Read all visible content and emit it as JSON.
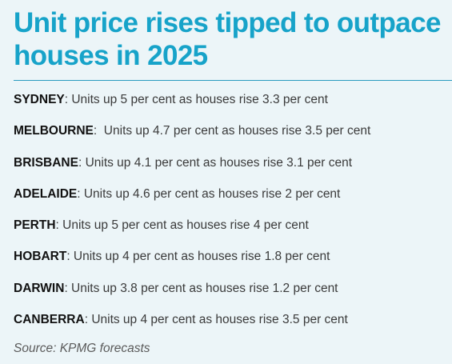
{
  "title": "Unit price rises tipped to outpace houses in 2025",
  "rows": [
    {
      "city": "SYDNEY",
      "text": ": Units up 5 per cent as houses rise 3.3 per cent"
    },
    {
      "city": "MELBOURNE",
      "text": ":  Units up 4.7 per cent as houses rise 3.5 per cent"
    },
    {
      "city": "BRISBANE",
      "text": ": Units up 4.1 per cent as houses rise 3.1 per cent"
    },
    {
      "city": "ADELAIDE",
      "text": ": Units up 4.6 per cent as houses rise 2 per cent"
    },
    {
      "city": "PERTH",
      "text": ": Units up 5 per cent as houses rise 4 per cent"
    },
    {
      "city": "HOBART",
      "text": ": Units up 4 per cent as houses rise 1.8 per cent"
    },
    {
      "city": "DARWIN",
      "text": ": Units up 3.8 per cent as houses rise 1.2 per cent"
    },
    {
      "city": "CANBERRA",
      "text": ": Units up 4 per cent as houses rise 3.5 per cent"
    }
  ],
  "source": "Source: KPMG forecasts",
  "colors": {
    "title": "#17a3c9",
    "background": "#ecf5f8",
    "rule": "#2a9bbf"
  }
}
